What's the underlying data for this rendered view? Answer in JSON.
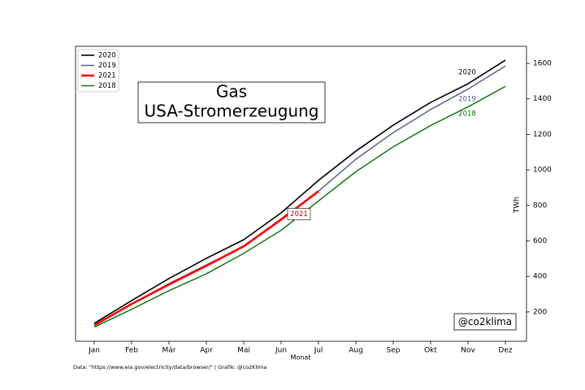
{
  "chart_data": {
    "type": "line",
    "title": "Gas",
    "subtitle": "USA-Stromerzeugung",
    "x_label": "Monat",
    "y_label": "TWh",
    "source": "Data: \"https://www.eia.gov/electricity/data/browser/\" | Grafik: @co2Klima",
    "watermark": "@co2klima",
    "categories": [
      "Jan",
      "Feb",
      "Mär",
      "Apr",
      "Mai",
      "Jun",
      "Jul",
      "Aug",
      "Sep",
      "Okt",
      "Nov",
      "Dez"
    ],
    "series": [
      {
        "name": "2020",
        "color": "#000000",
        "linewidth": 1.6,
        "values": [
          136,
          264,
          388,
          502,
          607,
          758,
          941,
          1106,
          1252,
          1380,
          1485,
          1618
        ]
      },
      {
        "name": "2019",
        "color": "#4c5a8c",
        "linewidth": 1.4,
        "values": [
          128,
          245,
          360,
          465,
          570,
          725,
          880,
          1060,
          1210,
          1340,
          1455,
          1585
        ]
      },
      {
        "name": "2021",
        "color": "#ff0000",
        "linewidth": 2.6,
        "values": [
          125,
          245,
          355,
          460,
          570,
          720,
          880,
          null,
          null,
          null,
          null,
          null
        ]
      },
      {
        "name": "2018",
        "color": "#007000",
        "linewidth": 1.4,
        "values": [
          115,
          215,
          320,
          415,
          530,
          660,
          825,
          990,
          1130,
          1250,
          1355,
          1470
        ]
      }
    ],
    "annotations": [
      {
        "text": "2020",
        "color": "#000000"
      },
      {
        "text": "2019",
        "color": "#4c5a8c"
      },
      {
        "text": "2018",
        "color": "#007000"
      },
      {
        "text": "2021",
        "color": "#c00000"
      }
    ],
    "ylim": [
      35,
      1696
    ],
    "yticks": [
      200,
      400,
      600,
      800,
      1000,
      1200,
      1400,
      1600
    ],
    "y_axis_side": "right",
    "legend": "upper left"
  }
}
